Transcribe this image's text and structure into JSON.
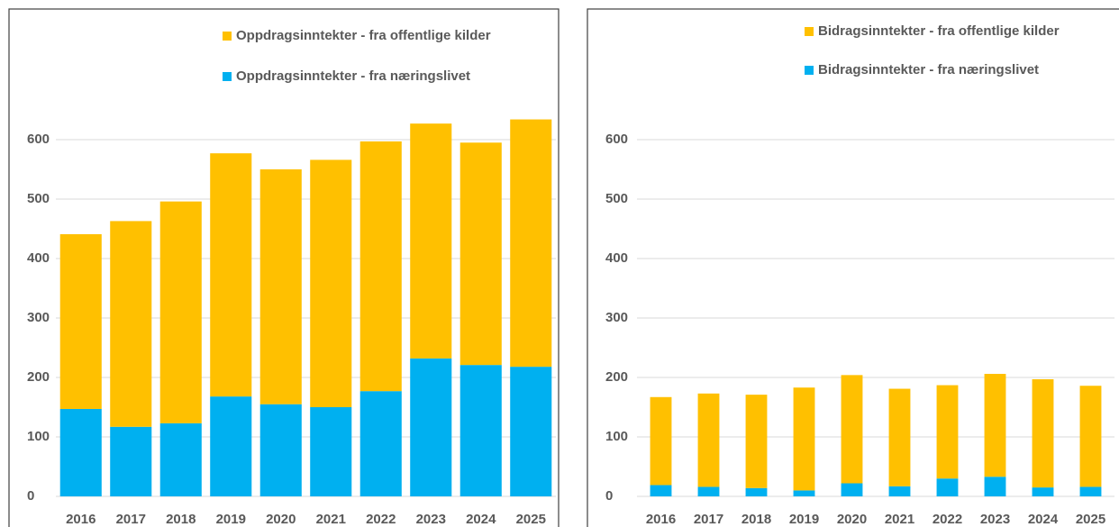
{
  "chart_data": [
    {
      "type": "bar",
      "stacked": true,
      "categories": [
        "2016",
        "2017",
        "2018",
        "2019",
        "2020",
        "2021",
        "2022",
        "2023",
        "2024",
        "2025"
      ],
      "series": [
        {
          "name": "Oppdragsinntekter - fra næringslivet",
          "color": "#00b0f0",
          "values": [
            147,
            117,
            123,
            168,
            155,
            150,
            177,
            232,
            221,
            218
          ]
        },
        {
          "name": "Oppdragsinntekter - fra offentlige kilder",
          "color": "#ffc000",
          "values": [
            294,
            346,
            373,
            409,
            395,
            416,
            420,
            395,
            374,
            416
          ]
        }
      ],
      "ylim": [
        0,
        700
      ],
      "yticks": [
        0,
        100,
        200,
        300,
        400,
        500,
        600
      ],
      "grid": true
    },
    {
      "type": "bar",
      "stacked": true,
      "categories": [
        "2016",
        "2017",
        "2018",
        "2019",
        "2020",
        "2021",
        "2022",
        "2023",
        "2024",
        "2025"
      ],
      "series": [
        {
          "name": "Bidragsinntekter - fra næringslivet",
          "color": "#00b0f0",
          "values": [
            19,
            16,
            14,
            10,
            22,
            17,
            30,
            33,
            15,
            16
          ]
        },
        {
          "name": "Bidragsinntekter - fra offentlige kilder",
          "color": "#ffc000",
          "values": [
            148,
            157,
            157,
            173,
            182,
            164,
            157,
            173,
            182,
            170
          ]
        }
      ],
      "ylim": [
        0,
        700
      ],
      "yticks": [
        0,
        100,
        200,
        300,
        400,
        500,
        600
      ],
      "grid": true
    }
  ]
}
